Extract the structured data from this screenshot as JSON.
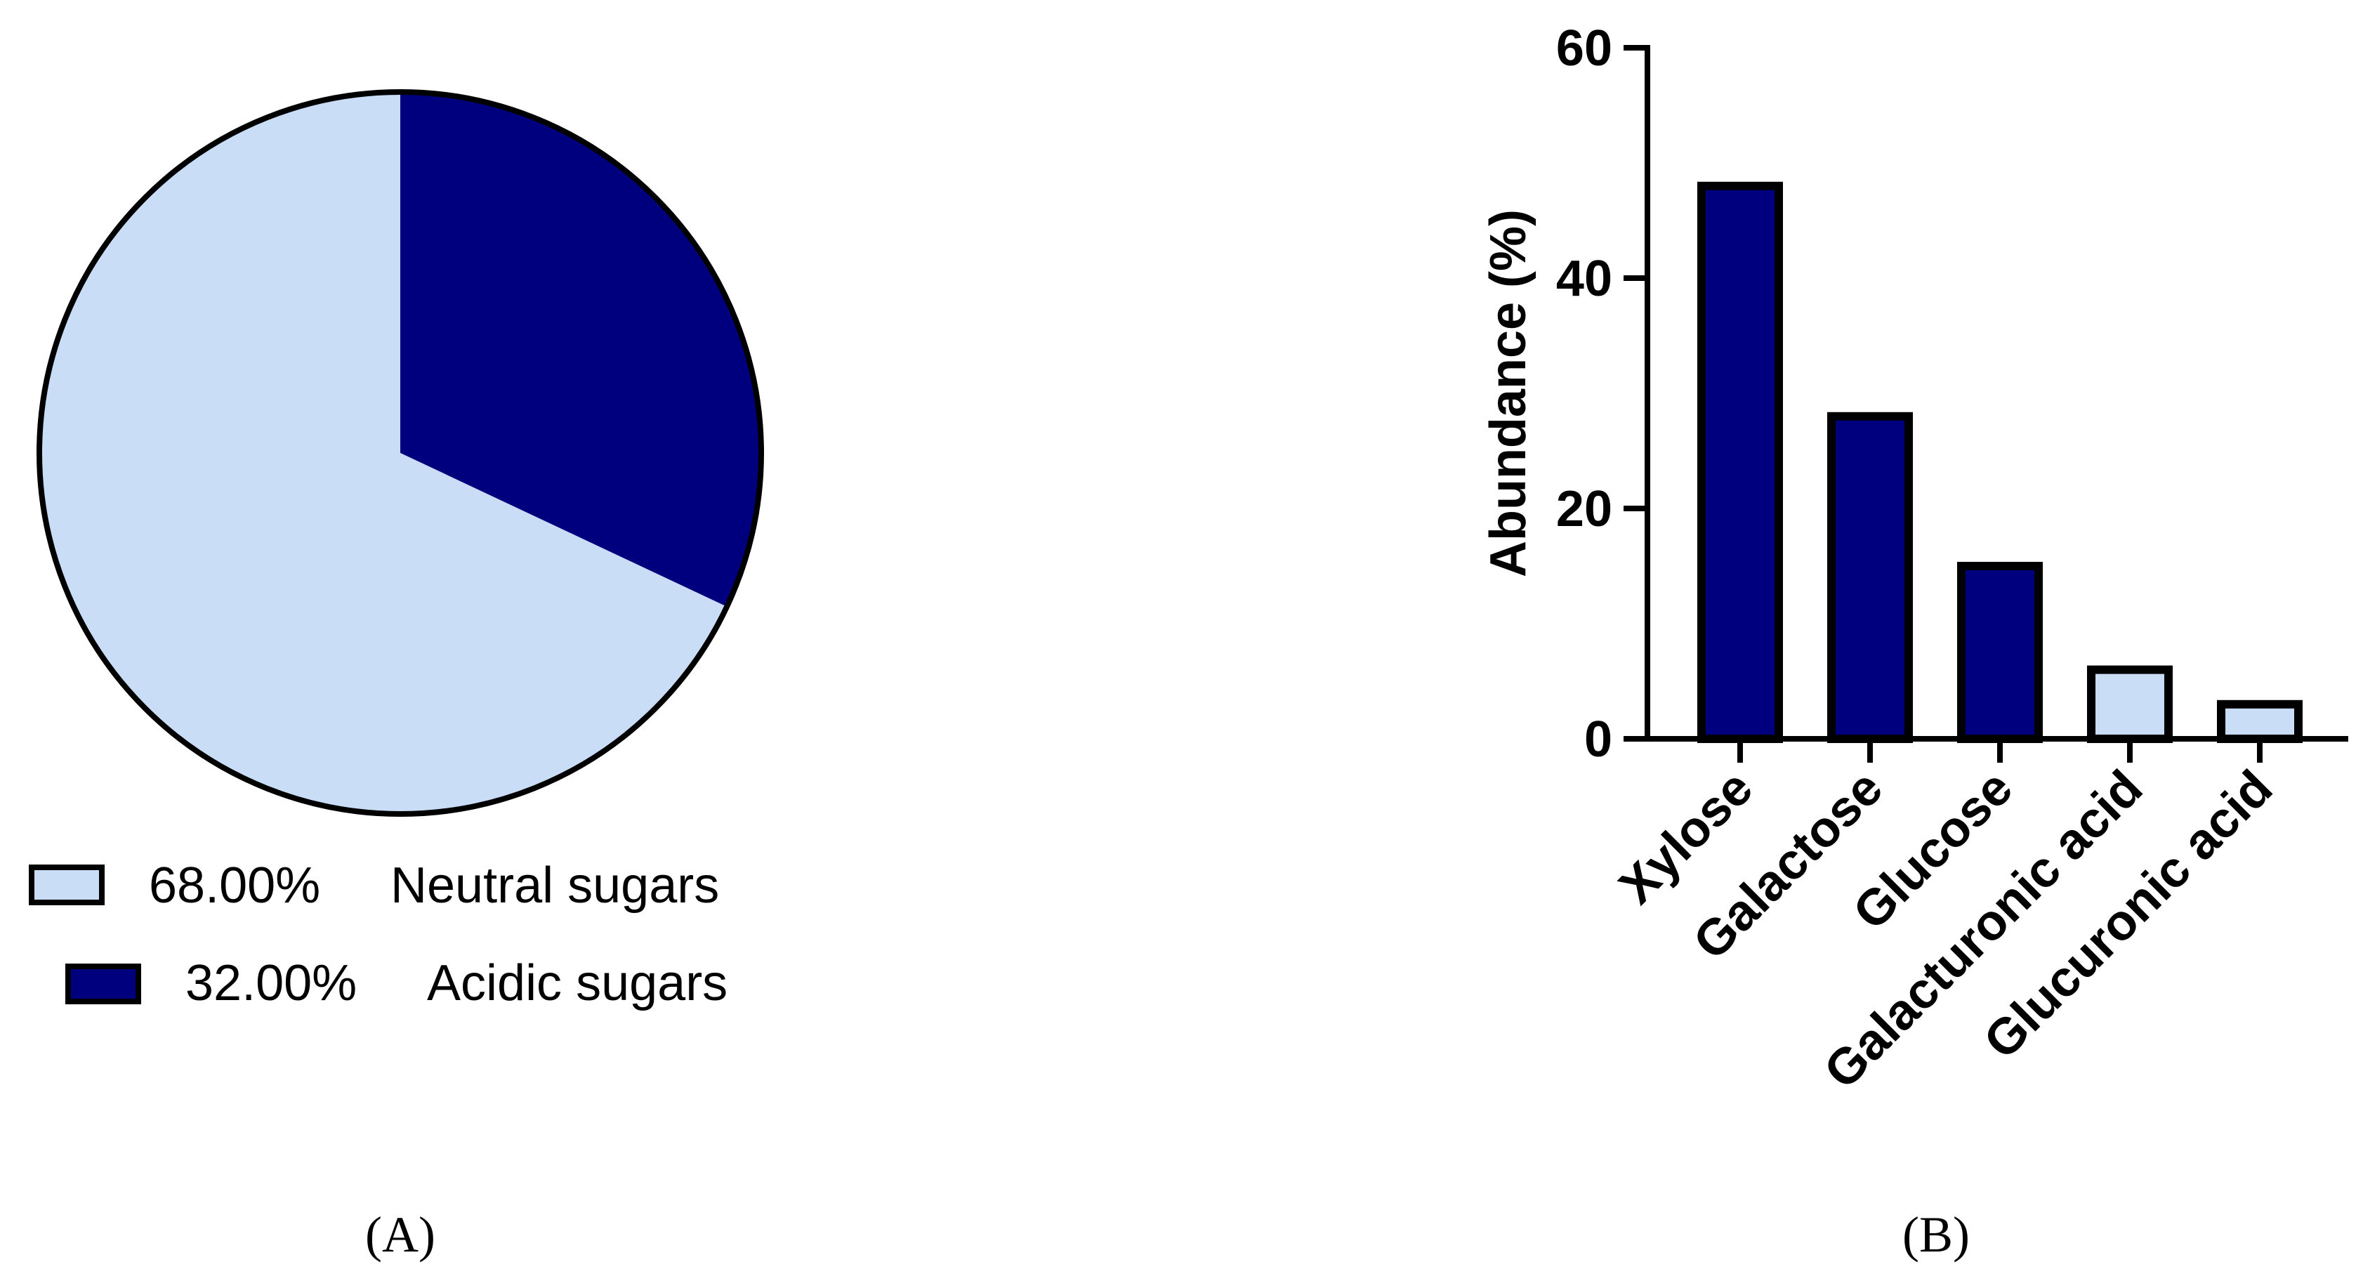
{
  "colors": {
    "neutral": "#c9ddf6",
    "acidic": "#00007e",
    "outline": "#000000",
    "background": "#ffffff"
  },
  "panel_labels": {
    "a": "(A)",
    "b": "(B)"
  },
  "chart_data": [
    {
      "type": "pie",
      "panel": "(A)",
      "slices": [
        {
          "name": "Neutral sugars",
          "value": 68.0,
          "label": "68.00%",
          "color": "#c9ddf6"
        },
        {
          "name": "Acidic sugars",
          "value": 32.0,
          "label": "32.00%",
          "color": "#00007e"
        }
      ],
      "start_angle_deg": 0,
      "direction": "clockwise",
      "legend": [
        {
          "label": "68.00%",
          "name": "Neutral sugars",
          "color": "#c9ddf6"
        },
        {
          "label": "32.00%",
          "name": "Acidic sugars",
          "color": "#00007e"
        }
      ],
      "legend_position": "bottom-left"
    },
    {
      "type": "bar",
      "panel": "(B)",
      "categories": [
        "Xylose",
        "Galactose",
        "Glucose",
        "Galacturonic acid",
        "Glucuronic acid"
      ],
      "values": [
        48,
        28,
        15,
        6,
        3
      ],
      "bar_colors": [
        "#00007e",
        "#00007e",
        "#00007e",
        "#c9ddf6",
        "#c9ddf6"
      ],
      "ylabel": "Abundance (%)",
      "xlabel": "",
      "ylim": [
        0,
        60
      ],
      "yticks": [
        0,
        20,
        40,
        60
      ],
      "ytick_labels": [
        "0",
        "20",
        "40",
        "60"
      ],
      "grid": false
    }
  ]
}
